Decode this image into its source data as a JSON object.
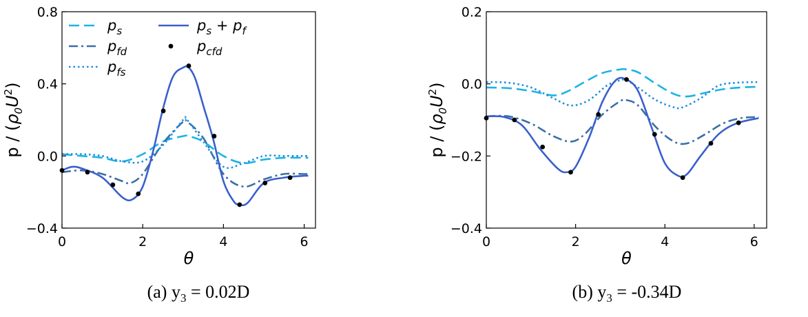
{
  "chart_data": [
    {
      "type": "line",
      "caption": "(a) y3 = 0.02D",
      "xlabel": "θ",
      "ylabel": "p / (ρ0U2)",
      "xlim": [
        0,
        6.28
      ],
      "ylim": [
        -0.4,
        0.8
      ],
      "xticks": [
        0,
        2,
        4,
        6
      ],
      "yticks": [
        -0.4,
        0.0,
        0.4,
        0.8
      ],
      "ytick_labels": [
        "−0.4",
        "0.0",
        "0.4",
        "0.8"
      ],
      "legend": {
        "placement": "top-left",
        "columns": 2
      },
      "series": [
        {
          "name": "p_s",
          "label": "ps",
          "style": "dashed",
          "color": "#1ab3e6",
          "x": [
            0,
            0.5,
            1.0,
            1.5,
            2.0,
            2.5,
            3.0,
            3.14,
            3.5,
            4.0,
            4.5,
            5.0,
            5.5,
            6.0,
            6.1
          ],
          "y": [
            0.01,
            0.0,
            -0.01,
            -0.03,
            0.01,
            0.08,
            0.11,
            0.11,
            0.08,
            0.0,
            -0.04,
            -0.02,
            -0.01,
            -0.01,
            -0.01
          ]
        },
        {
          "name": "p_fd",
          "label": "pfd",
          "style": "dashdot",
          "color": "#3b6ea5",
          "x": [
            0,
            0.5,
            1.0,
            1.5,
            1.7,
            2.0,
            2.5,
            3.0,
            3.1,
            3.5,
            4.0,
            4.5,
            5.0,
            5.5,
            6.0,
            6.1
          ],
          "y": [
            -0.09,
            -0.08,
            -0.1,
            -0.14,
            -0.15,
            -0.1,
            0.07,
            0.19,
            0.19,
            0.1,
            -0.1,
            -0.17,
            -0.13,
            -0.1,
            -0.1,
            -0.1
          ]
        },
        {
          "name": "p_fs",
          "label": "pfs",
          "style": "dotted",
          "color": "#1a8ee0",
          "x": [
            0,
            0.5,
            1.0,
            1.5,
            2.0,
            2.5,
            3.0,
            3.1,
            3.5,
            4.0,
            4.5,
            5.0,
            5.5,
            6.0,
            6.1
          ],
          "y": [
            0.01,
            0.01,
            0.0,
            -0.03,
            -0.03,
            0.06,
            0.2,
            0.2,
            0.08,
            -0.06,
            -0.04,
            0.0,
            0.0,
            0.0,
            0.0
          ]
        },
        {
          "name": "p_s + p_f",
          "label": "ps + pf",
          "style": "solid",
          "color": "#3a5fcd",
          "x": [
            0,
            0.25,
            0.5,
            1.0,
            1.5,
            1.75,
            2.0,
            2.25,
            2.5,
            2.75,
            3.0,
            3.14,
            3.3,
            3.5,
            3.75,
            4.0,
            4.25,
            4.4,
            4.6,
            5.0,
            5.5,
            6.0,
            6.1
          ],
          "y": [
            -0.08,
            -0.06,
            -0.07,
            -0.12,
            -0.23,
            -0.24,
            -0.17,
            0.02,
            0.26,
            0.44,
            0.49,
            0.49,
            0.43,
            0.28,
            0.09,
            -0.14,
            -0.25,
            -0.27,
            -0.26,
            -0.15,
            -0.12,
            -0.11,
            -0.11
          ]
        },
        {
          "name": "p_cfd",
          "label": "pcfd",
          "style": "markers",
          "color": "#000000",
          "x": [
            0,
            0.63,
            1.26,
            1.89,
            2.51,
            3.14,
            3.77,
            4.4,
            5.03,
            5.65
          ],
          "y": [
            -0.08,
            -0.09,
            -0.16,
            -0.21,
            0.25,
            0.5,
            0.11,
            -0.27,
            -0.15,
            -0.12
          ]
        }
      ]
    },
    {
      "type": "line",
      "caption": "(b) y3 = -0.34D",
      "xlabel": "θ",
      "ylabel": "p / (ρ0U2)",
      "xlim": [
        0,
        6.28
      ],
      "ylim": [
        -0.4,
        0.2
      ],
      "xticks": [
        0,
        2,
        4,
        6
      ],
      "yticks": [
        -0.4,
        -0.2,
        0.0,
        0.2
      ],
      "ytick_labels": [
        "−0.4",
        "−0.2",
        "0.0",
        "0.2"
      ],
      "series": [
        {
          "name": "p_s",
          "label": "ps",
          "style": "dashed",
          "color": "#1ab3e6",
          "x": [
            0,
            0.5,
            1.0,
            1.5,
            1.8,
            2.2,
            2.6,
            3.0,
            3.14,
            3.4,
            3.8,
            4.2,
            4.5,
            4.9,
            5.3,
            5.7,
            6.1
          ],
          "y": [
            -0.01,
            -0.012,
            -0.02,
            -0.032,
            -0.022,
            0.005,
            0.03,
            0.04,
            0.04,
            0.032,
            0.0,
            -0.028,
            -0.035,
            -0.025,
            -0.015,
            -0.01,
            -0.008
          ]
        },
        {
          "name": "p_fd",
          "label": "pfd",
          "style": "dashdot",
          "color": "#3b6ea5",
          "x": [
            0,
            0.5,
            1.0,
            1.5,
            1.9,
            2.2,
            2.6,
            3.0,
            3.14,
            3.4,
            3.8,
            4.2,
            4.5,
            4.9,
            5.3,
            5.7,
            6.1
          ],
          "y": [
            -0.09,
            -0.09,
            -0.11,
            -0.145,
            -0.16,
            -0.14,
            -0.085,
            -0.048,
            -0.045,
            -0.06,
            -0.12,
            -0.16,
            -0.165,
            -0.14,
            -0.11,
            -0.095,
            -0.092
          ]
        },
        {
          "name": "p_fs",
          "label": "pfs",
          "style": "dotted",
          "color": "#1a8ee0",
          "x": [
            0,
            0.5,
            1.0,
            1.5,
            1.9,
            2.3,
            2.7,
            3.0,
            3.14,
            3.4,
            3.8,
            4.2,
            4.4,
            4.8,
            5.2,
            5.6,
            6.1
          ],
          "y": [
            0.005,
            0.003,
            -0.01,
            -0.04,
            -0.06,
            -0.045,
            -0.005,
            0.01,
            0.01,
            -0.01,
            -0.045,
            -0.065,
            -0.065,
            -0.04,
            -0.005,
            0.003,
            0.005
          ]
        },
        {
          "name": "p_s + p_f",
          "label": "ps + pf",
          "style": "solid",
          "color": "#3a5fcd",
          "x": [
            0,
            0.4,
            0.8,
            1.2,
            1.6,
            1.8,
            2.0,
            2.3,
            2.6,
            2.9,
            3.14,
            3.4,
            3.7,
            4.0,
            4.3,
            4.5,
            4.8,
            5.2,
            5.6,
            6.1
          ],
          "y": [
            -0.09,
            -0.092,
            -0.115,
            -0.18,
            -0.235,
            -0.245,
            -0.23,
            -0.15,
            -0.05,
            0.01,
            0.012,
            -0.02,
            -0.12,
            -0.22,
            -0.255,
            -0.25,
            -0.2,
            -0.14,
            -0.11,
            -0.095
          ]
        },
        {
          "name": "p_cfd",
          "label": "pcfd",
          "style": "markers",
          "color": "#000000",
          "x": [
            0,
            0.63,
            1.26,
            1.89,
            2.51,
            3.14,
            3.77,
            4.4,
            5.03,
            5.65
          ],
          "y": [
            -0.095,
            -0.1,
            -0.175,
            -0.245,
            -0.085,
            0.012,
            -0.14,
            -0.26,
            -0.165,
            -0.108
          ]
        }
      ]
    }
  ]
}
